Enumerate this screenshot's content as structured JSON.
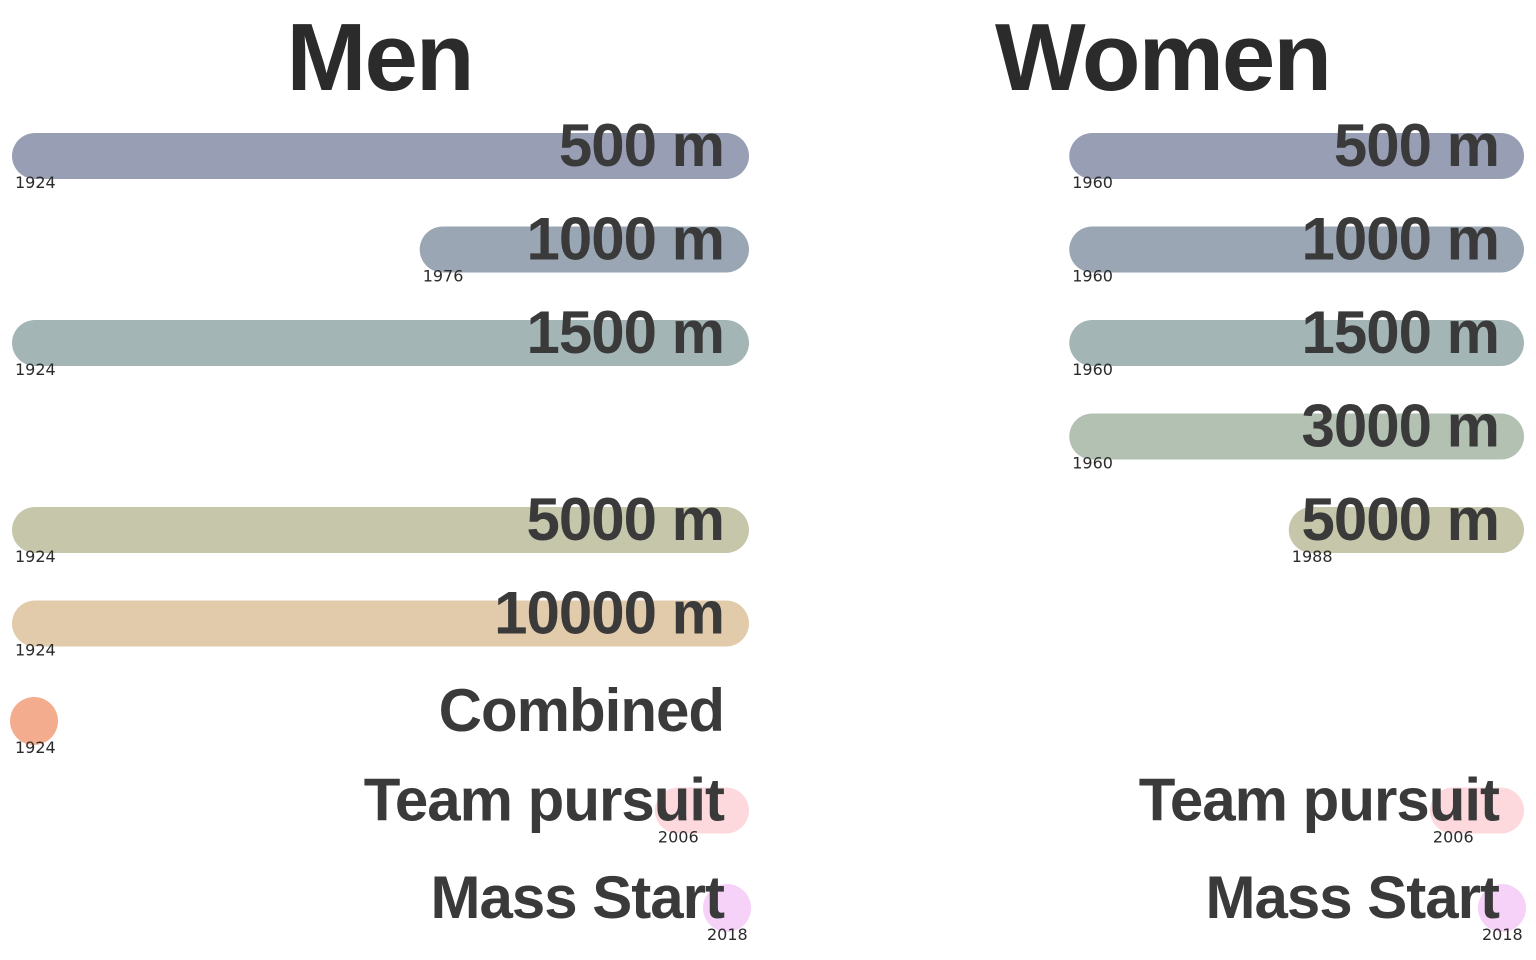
{
  "chart_data": [
    {
      "type": "bar",
      "title": "Men",
      "x_domain": [
        1924,
        2018
      ],
      "series": [
        {
          "event": "500 m",
          "start": 1924,
          "end": 2018,
          "year_label": "1924",
          "color": "#989eb4"
        },
        {
          "event": "1000 m",
          "start": 1976,
          "end": 2018,
          "year_label": "1976",
          "color": "#9aa6b4"
        },
        {
          "event": "1500 m",
          "start": 1924,
          "end": 2018,
          "year_label": "1924",
          "color": "#a4b5b6"
        },
        {
          "event": "",
          "start": null,
          "end": null,
          "year_label": "",
          "color": ""
        },
        {
          "event": "5000 m",
          "start": 1924,
          "end": 2018,
          "year_label": "1924",
          "color": "#c6c6ab"
        },
        {
          "event": "10000 m",
          "start": 1924,
          "end": 2018,
          "year_label": "1924",
          "color": "#e1cbaa"
        },
        {
          "event": "Combined",
          "start": 1924,
          "end": 1924,
          "year_label": "1924",
          "color": "#f3ad8e"
        },
        {
          "event": "Team pursuit",
          "start": 2006,
          "end": 2018,
          "year_label": "2006",
          "color": "#fdd9de"
        },
        {
          "event": "Mass Start",
          "start": 2018,
          "end": 2018,
          "year_label": "2018",
          "color": "#f6d1f8"
        }
      ]
    },
    {
      "type": "bar",
      "title": "Women",
      "x_domain": [
        1924,
        2018
      ],
      "series": [
        {
          "event": "500 m",
          "start": 1960,
          "end": 2018,
          "year_label": "1960",
          "color": "#989eb4"
        },
        {
          "event": "1000 m",
          "start": 1960,
          "end": 2018,
          "year_label": "1960",
          "color": "#9aa6b4"
        },
        {
          "event": "1500 m",
          "start": 1960,
          "end": 2018,
          "year_label": "1960",
          "color": "#a4b5b6"
        },
        {
          "event": "3000 m",
          "start": 1960,
          "end": 2018,
          "year_label": "1960",
          "color": "#b3c1b3"
        },
        {
          "event": "5000 m",
          "start": 1988,
          "end": 2018,
          "year_label": "1988",
          "color": "#c6c6ab"
        },
        {
          "event": "",
          "start": null,
          "end": null,
          "year_label": "",
          "color": ""
        },
        {
          "event": "",
          "start": null,
          "end": null,
          "year_label": "",
          "color": ""
        },
        {
          "event": "Team pursuit",
          "start": 2006,
          "end": 2018,
          "year_label": "2006",
          "color": "#fdd9de"
        },
        {
          "event": "Mass Start",
          "start": 2018,
          "end": 2018,
          "year_label": "2018",
          "color": "#f6d1f8"
        }
      ]
    }
  ]
}
